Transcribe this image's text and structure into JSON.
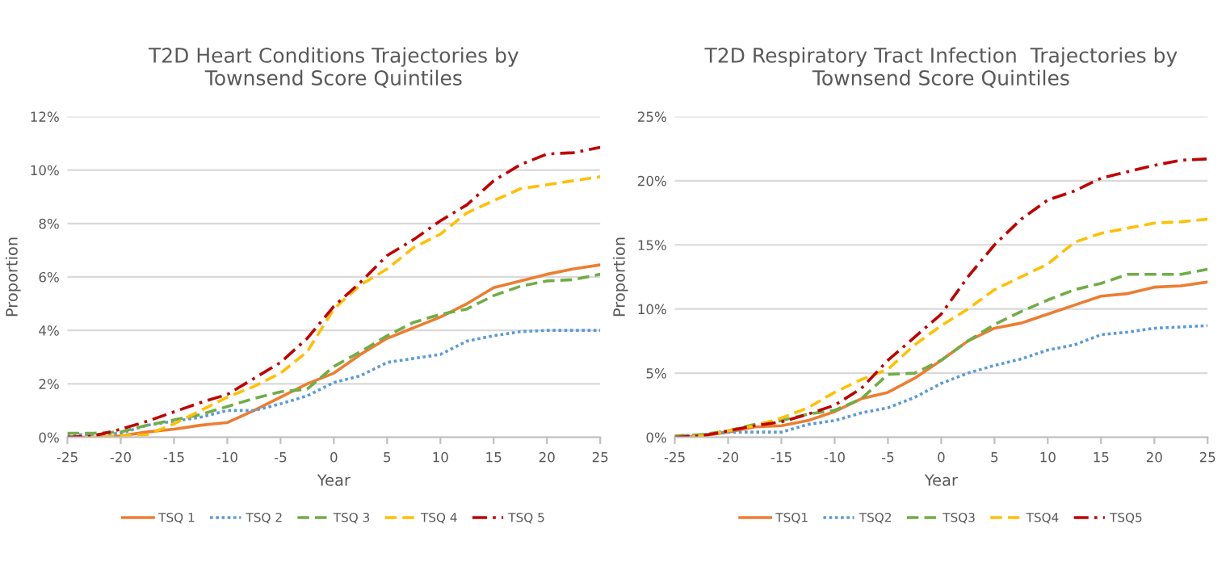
{
  "chart_data": [
    {
      "type": "line",
      "title": "T2D Heart Conditions Trajectories by\nTownsend Score Quintiles",
      "xlabel": "Year",
      "ylabel": "Proportion",
      "x": [
        -25,
        -22.5,
        -20,
        -17.5,
        -15,
        -12.5,
        -10,
        -7.5,
        -5,
        -2.5,
        0,
        2.5,
        5,
        7.5,
        10,
        12.5,
        15,
        17.5,
        20,
        22.5,
        25
      ],
      "xlim": [
        -25,
        25
      ],
      "xticks": [
        -25,
        -20,
        -15,
        -10,
        -5,
        0,
        5,
        10,
        15,
        20,
        25
      ],
      "ylim": [
        0,
        12
      ],
      "yticks": [
        {
          "value": 0,
          "label": "0%"
        },
        {
          "value": 2,
          "label": "2%"
        },
        {
          "value": 4,
          "label": "4%"
        },
        {
          "value": 6,
          "label": "6%"
        },
        {
          "value": 8,
          "label": "8%"
        },
        {
          "value": 10,
          "label": "10%"
        },
        {
          "value": 12,
          "label": "12%"
        }
      ],
      "grid": "y",
      "legend": "bottom",
      "series": [
        {
          "name": "TSQ 1",
          "color": "#ed7d31",
          "line_style": "solid",
          "values": [
            0,
            0,
            0.05,
            0.2,
            0.3,
            0.45,
            0.55,
            1.0,
            1.5,
            2.0,
            2.4,
            3.1,
            3.7,
            4.1,
            4.5,
            5.0,
            5.6,
            5.85,
            6.1,
            6.3,
            6.45
          ]
        },
        {
          "name": "TSQ 2",
          "color": "#5b9bd5",
          "line_style": "dotted",
          "values": [
            0.1,
            0.1,
            0.15,
            0.45,
            0.6,
            0.75,
            1.0,
            1.0,
            1.25,
            1.55,
            2.05,
            2.3,
            2.8,
            2.95,
            3.1,
            3.6,
            3.8,
            3.95,
            4.0,
            4.0,
            4.0
          ]
        },
        {
          "name": "TSQ 3",
          "color": "#70ad47",
          "line_style": "dashed",
          "values": [
            0.15,
            0.15,
            0.2,
            0.45,
            0.65,
            0.85,
            1.15,
            1.45,
            1.7,
            1.8,
            2.65,
            3.2,
            3.8,
            4.3,
            4.6,
            4.8,
            5.3,
            5.65,
            5.85,
            5.9,
            6.1
          ]
        },
        {
          "name": "TSQ 4",
          "color": "#ffc000",
          "line_style": "dashed",
          "values": [
            0,
            0,
            0.05,
            0.1,
            0.5,
            1.0,
            1.5,
            1.9,
            2.4,
            3.2,
            4.8,
            5.7,
            6.3,
            7.1,
            7.6,
            8.4,
            8.85,
            9.3,
            9.45,
            9.6,
            9.75
          ]
        },
        {
          "name": "TSQ 5",
          "color": "#c00000",
          "line_style": "dashdot",
          "values": [
            0,
            0.05,
            0.3,
            0.6,
            0.95,
            1.3,
            1.6,
            2.2,
            2.8,
            3.7,
            4.9,
            5.8,
            6.8,
            7.4,
            8.1,
            8.7,
            9.6,
            10.2,
            10.6,
            10.65,
            10.85
          ]
        }
      ]
    },
    {
      "type": "line",
      "title": "T2D Respiratory Tract Infection  Trajectories by\nTownsend Score Quintiles",
      "xlabel": "Year",
      "ylabel": "Proportion",
      "x": [
        -25,
        -22.5,
        -20,
        -17.5,
        -15,
        -12.5,
        -10,
        -7.5,
        -5,
        -2.5,
        0,
        2.5,
        5,
        7.5,
        10,
        12.5,
        15,
        17.5,
        20,
        22.5,
        25
      ],
      "xlim": [
        -25,
        25
      ],
      "xticks": [
        -25,
        -20,
        -15,
        -10,
        -5,
        0,
        5,
        10,
        15,
        20,
        25
      ],
      "ylim": [
        0,
        25
      ],
      "yticks": [
        {
          "value": 0,
          "label": "0%"
        },
        {
          "value": 5,
          "label": "5%"
        },
        {
          "value": 10,
          "label": "10%"
        },
        {
          "value": 15,
          "label": "15%"
        },
        {
          "value": 20,
          "label": "20%"
        },
        {
          "value": 25,
          "label": "25%"
        }
      ],
      "grid": "y",
      "legend": "bottom",
      "series": [
        {
          "name": "TSQ1",
          "color": "#ed7d31",
          "line_style": "solid",
          "values": [
            0,
            0.1,
            0.4,
            0.8,
            0.9,
            1.3,
            2.0,
            3.0,
            3.5,
            4.6,
            6.0,
            7.5,
            8.5,
            8.9,
            9.6,
            10.3,
            11.0,
            11.2,
            11.7,
            11.8,
            12.1
          ]
        },
        {
          "name": "TSQ2",
          "color": "#5b9bd5",
          "line_style": "dotted",
          "values": [
            0.1,
            0.2,
            0.4,
            0.4,
            0.4,
            1.0,
            1.3,
            1.9,
            2.3,
            3.1,
            4.2,
            5.0,
            5.6,
            6.1,
            6.8,
            7.2,
            8.0,
            8.2,
            8.5,
            8.6,
            8.7
          ]
        },
        {
          "name": "TSQ3",
          "color": "#70ad47",
          "line_style": "dashed",
          "values": [
            0.1,
            0.2,
            0.5,
            1.0,
            1.3,
            1.8,
            2.1,
            3.0,
            4.9,
            5.0,
            6.0,
            7.5,
            8.8,
            9.8,
            10.7,
            11.5,
            12.0,
            12.7,
            12.7,
            12.7,
            13.1
          ]
        },
        {
          "name": "TSQ4",
          "color": "#ffc000",
          "line_style": "dashed",
          "values": [
            0,
            0.1,
            0.5,
            0.9,
            1.5,
            2.3,
            3.5,
            4.5,
            5.3,
            7.2,
            8.7,
            10.0,
            11.5,
            12.5,
            13.5,
            15.2,
            15.9,
            16.3,
            16.7,
            16.8,
            17.0
          ]
        },
        {
          "name": "TSQ5",
          "color": "#c00000",
          "line_style": "dashdot",
          "values": [
            0,
            0.1,
            0.5,
            0.9,
            1.2,
            1.8,
            2.5,
            3.8,
            6.0,
            7.8,
            9.6,
            12.5,
            15.0,
            17.0,
            18.5,
            19.2,
            20.2,
            20.7,
            21.2,
            21.6,
            21.7
          ]
        }
      ]
    }
  ]
}
